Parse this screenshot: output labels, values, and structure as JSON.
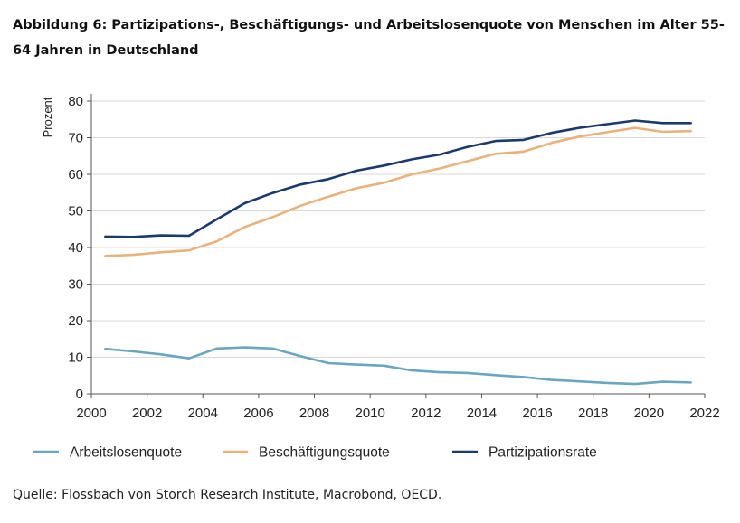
{
  "title": "Abbildung 6: Partizipations-, Beschäftigungs- und Arbeitslosenquote von Menschen im Alter 55-64 Jahren in Deutschland",
  "source": "Quelle: Flossbach von Storch Research Institute, Macrobond, OECD.",
  "chart_data": {
    "type": "line",
    "ylabel": "Prozent",
    "xlim": [
      2000,
      2022
    ],
    "ylim": [
      0,
      80
    ],
    "x_ticks": [
      2000,
      2002,
      2004,
      2006,
      2008,
      2010,
      2012,
      2014,
      2016,
      2018,
      2020,
      2022
    ],
    "y_ticks": [
      0,
      10,
      20,
      30,
      40,
      50,
      60,
      70,
      80
    ],
    "grid": "horizontal",
    "legend_position": "bottom",
    "x": [
      2000.5,
      2001.5,
      2002.5,
      2003.5,
      2004.5,
      2005.5,
      2006.5,
      2007.5,
      2008.5,
      2009.5,
      2010.5,
      2011.5,
      2012.5,
      2013.5,
      2014.5,
      2015.5,
      2016.5,
      2017.5,
      2018.5,
      2019.5,
      2020.5,
      2021.5
    ],
    "series": [
      {
        "name": "Arbeitslosenquote",
        "color": "#6aa6c2",
        "values": [
          12.3,
          11.6,
          10.8,
          9.7,
          12.4,
          12.7,
          12.4,
          10.3,
          8.4,
          8.0,
          7.7,
          6.4,
          5.9,
          5.7,
          5.1,
          4.6,
          3.8,
          3.4,
          3.0,
          2.7,
          3.3,
          3.1
        ]
      },
      {
        "name": "Beschäftigungsquote",
        "color": "#e8b27a",
        "values": [
          37.7,
          38.0,
          38.7,
          39.2,
          41.7,
          45.6,
          48.3,
          51.4,
          53.9,
          56.2,
          57.7,
          60.0,
          61.6,
          63.6,
          65.6,
          66.2,
          68.6,
          70.3,
          71.5,
          72.7,
          71.6,
          71.8
        ]
      },
      {
        "name": "Partizipationsrate",
        "color": "#1a3a6e",
        "values": [
          43.0,
          42.9,
          43.3,
          43.2,
          47.7,
          52.1,
          54.9,
          57.2,
          58.7,
          61.0,
          62.4,
          64.1,
          65.4,
          67.5,
          69.1,
          69.4,
          71.3,
          72.7,
          73.7,
          74.7,
          74.0,
          74.0
        ]
      }
    ]
  }
}
